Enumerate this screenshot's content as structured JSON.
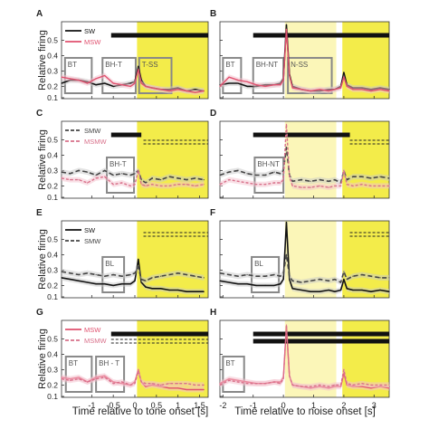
{
  "figure": {
    "ylabel": "Relative firing",
    "xlabel_left": "Time relative to tone onset [s]",
    "xlabel_right": "Time relative to noise onset [s]",
    "left_xticks": [
      -1,
      -0.5,
      0,
      0.5,
      1,
      1.5
    ],
    "left_xlim": [
      -1.7,
      1.7
    ],
    "right_xticks": [
      -2,
      -1,
      0,
      1,
      2,
      3
    ],
    "right_xlim": [
      -2.1,
      3.5
    ],
    "colors": {
      "yellow": "#f3ec4a",
      "light_yellow": "#fbf6b8",
      "sw": "#111111",
      "msw": "#e0506e",
      "smw": "#444444",
      "msmw": "#d8708a",
      "box": "#888888",
      "shade_black": "#c8c8c8",
      "shade_red": "#f3c2cd"
    }
  },
  "chart_data": [
    {
      "type": "line",
      "panel": "A",
      "side": "left",
      "ylim": [
        0.12,
        0.62
      ],
      "yticks": [
        0.1,
        0.2,
        0.3,
        0.4,
        0.5
      ],
      "legend": [
        {
          "label": "SW",
          "style": "solid",
          "color": "#111111"
        },
        {
          "label": "MSW",
          "style": "solid",
          "color": "#e0506e"
        }
      ],
      "epochs": [
        {
          "label": "BT",
          "x": [
            -1.62,
            -1.0
          ]
        },
        {
          "label": "BH-T",
          "x": [
            -0.75,
            0.02
          ]
        },
        {
          "label": "T-SS",
          "x": [
            0.1,
            0.85
          ]
        }
      ],
      "bars": [
        {
          "x": [
            -0.55,
            1.7
          ],
          "style": "solid"
        }
      ],
      "x": [
        -1.7,
        -1.5,
        -1.3,
        -1.1,
        -0.9,
        -0.7,
        -0.5,
        -0.3,
        -0.1,
        0.0,
        0.08,
        0.15,
        0.25,
        0.4,
        0.6,
        0.8,
        1.0,
        1.2,
        1.4,
        1.6
      ],
      "series": [
        {
          "name": "SW",
          "values": [
            0.22,
            0.24,
            0.24,
            0.23,
            0.21,
            0.22,
            0.2,
            0.21,
            0.22,
            0.23,
            0.33,
            0.24,
            0.2,
            0.19,
            0.18,
            0.18,
            0.19,
            0.17,
            0.18,
            0.17
          ]
        },
        {
          "name": "MSW",
          "values": [
            0.26,
            0.25,
            0.24,
            0.22,
            0.25,
            0.27,
            0.22,
            0.21,
            0.2,
            0.22,
            0.31,
            0.22,
            0.2,
            0.19,
            0.18,
            0.17,
            0.18,
            0.17,
            0.16,
            0.17
          ]
        }
      ]
    },
    {
      "type": "line",
      "panel": "B",
      "side": "right",
      "ylim": [
        0.12,
        0.62
      ],
      "yticks": [
        0.1,
        0.2,
        0.3,
        0.4,
        0.5
      ],
      "legend": [],
      "epochs": [
        {
          "label": "BT",
          "x": [
            -2.0,
            -1.4
          ]
        },
        {
          "label": "BH-NT",
          "x": [
            -1.0,
            0.0
          ]
        },
        {
          "label": "N-SS",
          "x": [
            0.15,
            1.6
          ]
        }
      ],
      "bars": [
        {
          "x": [
            -1.0,
            3.5
          ],
          "style": "solid"
        }
      ],
      "x": [
        -2.1,
        -1.8,
        -1.5,
        -1.2,
        -0.9,
        -0.6,
        -0.3,
        -0.1,
        0.0,
        0.1,
        0.2,
        0.3,
        0.6,
        0.9,
        1.2,
        1.5,
        1.7,
        1.9,
        2.0,
        2.1,
        2.3,
        2.6,
        2.9,
        3.2,
        3.5
      ],
      "series": [
        {
          "name": "SW",
          "values": [
            0.21,
            0.22,
            0.22,
            0.2,
            0.2,
            0.21,
            0.21,
            0.22,
            0.25,
            0.6,
            0.28,
            0.2,
            0.18,
            0.17,
            0.17,
            0.18,
            0.18,
            0.2,
            0.29,
            0.21,
            0.19,
            0.19,
            0.18,
            0.19,
            0.18
          ]
        },
        {
          "name": "MSW",
          "values": [
            0.2,
            0.26,
            0.24,
            0.23,
            0.21,
            0.2,
            0.21,
            0.21,
            0.24,
            0.57,
            0.27,
            0.19,
            0.18,
            0.17,
            0.18,
            0.17,
            0.18,
            0.19,
            0.26,
            0.2,
            0.18,
            0.18,
            0.17,
            0.18,
            0.17
          ]
        }
      ]
    },
    {
      "type": "line",
      "panel": "C",
      "side": "left",
      "ylim": [
        0.12,
        0.62
      ],
      "yticks": [
        0.1,
        0.2,
        0.3,
        0.4,
        0.5
      ],
      "legend": [
        {
          "label": "SMW",
          "style": "dash",
          "color": "#444444"
        },
        {
          "label": "MSMW",
          "style": "dash",
          "color": "#d8708a"
        }
      ],
      "epochs": [
        {
          "label": "BH-T",
          "x": [
            -0.65,
            -0.02
          ]
        }
      ],
      "bars": [
        {
          "x": [
            -0.55,
            0.15
          ],
          "style": "solid"
        },
        {
          "x": [
            0.2,
            1.7
          ],
          "style": "dash"
        }
      ],
      "x": [
        -1.7,
        -1.5,
        -1.3,
        -1.1,
        -0.9,
        -0.7,
        -0.5,
        -0.3,
        -0.1,
        0.0,
        0.08,
        0.15,
        0.25,
        0.4,
        0.6,
        0.8,
        1.0,
        1.2,
        1.4,
        1.6
      ],
      "series": [
        {
          "name": "SMW",
          "values": [
            0.29,
            0.28,
            0.3,
            0.29,
            0.27,
            0.3,
            0.27,
            0.28,
            0.27,
            0.28,
            0.3,
            0.24,
            0.22,
            0.25,
            0.24,
            0.26,
            0.25,
            0.24,
            0.25,
            0.24
          ]
        },
        {
          "name": "MSMW",
          "values": [
            0.25,
            0.24,
            0.24,
            0.22,
            0.25,
            0.26,
            0.21,
            0.22,
            0.2,
            0.21,
            0.3,
            0.21,
            0.2,
            0.21,
            0.2,
            0.2,
            0.21,
            0.21,
            0.2,
            0.21
          ]
        }
      ]
    },
    {
      "type": "line",
      "panel": "D",
      "side": "right",
      "ylim": [
        0.12,
        0.62
      ],
      "yticks": [
        0.1,
        0.2,
        0.3,
        0.4,
        0.5
      ],
      "legend": [],
      "epochs": [
        {
          "label": "BH-NT",
          "x": [
            -0.95,
            0.0
          ]
        }
      ],
      "bars": [
        {
          "x": [
            -1.0,
            2.2
          ],
          "style": "solid"
        },
        {
          "x": [
            2.2,
            3.5
          ],
          "style": "dash"
        }
      ],
      "x": [
        -2.1,
        -1.8,
        -1.5,
        -1.2,
        -0.9,
        -0.6,
        -0.3,
        -0.1,
        0.0,
        0.1,
        0.2,
        0.3,
        0.6,
        0.9,
        1.2,
        1.5,
        1.7,
        1.9,
        2.0,
        2.1,
        2.3,
        2.6,
        2.9,
        3.2,
        3.5
      ],
      "series": [
        {
          "name": "SMW",
          "values": [
            0.27,
            0.29,
            0.3,
            0.28,
            0.27,
            0.27,
            0.29,
            0.28,
            0.3,
            0.45,
            0.27,
            0.23,
            0.24,
            0.23,
            0.24,
            0.23,
            0.24,
            0.22,
            0.3,
            0.24,
            0.26,
            0.26,
            0.25,
            0.26,
            0.25
          ]
        },
        {
          "name": "MSMW",
          "values": [
            0.21,
            0.24,
            0.23,
            0.22,
            0.21,
            0.21,
            0.22,
            0.22,
            0.24,
            0.6,
            0.26,
            0.2,
            0.19,
            0.19,
            0.2,
            0.19,
            0.2,
            0.2,
            0.3,
            0.21,
            0.2,
            0.21,
            0.2,
            0.2,
            0.2
          ]
        }
      ]
    },
    {
      "type": "line",
      "panel": "E",
      "side": "left",
      "ylim": [
        0.12,
        0.62
      ],
      "yticks": [
        0.1,
        0.2,
        0.3,
        0.4,
        0.5
      ],
      "legend": [
        {
          "label": "SW",
          "style": "solid",
          "color": "#111111"
        },
        {
          "label": "SMW",
          "style": "dash",
          "color": "#444444"
        }
      ],
      "epochs": [
        {
          "label": "BL",
          "x": [
            -0.75,
            -0.25
          ]
        }
      ],
      "bars": [
        {
          "x": [
            0.2,
            1.7
          ],
          "style": "dash"
        }
      ],
      "x": [
        -1.7,
        -1.5,
        -1.3,
        -1.1,
        -0.9,
        -0.7,
        -0.5,
        -0.3,
        -0.1,
        0.0,
        0.08,
        0.15,
        0.25,
        0.4,
        0.6,
        0.8,
        1.0,
        1.2,
        1.4,
        1.6
      ],
      "series": [
        {
          "name": "SW",
          "values": [
            0.25,
            0.24,
            0.23,
            0.22,
            0.21,
            0.21,
            0.2,
            0.21,
            0.21,
            0.23,
            0.37,
            0.22,
            0.19,
            0.18,
            0.18,
            0.17,
            0.17,
            0.16,
            0.16,
            0.16
          ]
        },
        {
          "name": "SMW",
          "values": [
            0.29,
            0.28,
            0.27,
            0.28,
            0.27,
            0.26,
            0.27,
            0.26,
            0.27,
            0.28,
            0.32,
            0.24,
            0.23,
            0.25,
            0.26,
            0.27,
            0.28,
            0.27,
            0.26,
            0.25
          ]
        }
      ]
    },
    {
      "type": "line",
      "panel": "F",
      "side": "right",
      "ylim": [
        0.12,
        0.62
      ],
      "yticks": [
        0.1,
        0.2,
        0.3,
        0.4,
        0.5
      ],
      "legend": [],
      "epochs": [
        {
          "label": "BL",
          "x": [
            -1.05,
            -0.15
          ]
        }
      ],
      "bars": [
        {
          "x": [
            2.2,
            3.5
          ],
          "style": "dash"
        }
      ],
      "x": [
        -2.1,
        -1.8,
        -1.5,
        -1.2,
        -0.9,
        -0.6,
        -0.3,
        -0.1,
        0.0,
        0.1,
        0.2,
        0.3,
        0.6,
        0.9,
        1.2,
        1.5,
        1.7,
        1.9,
        2.0,
        2.1,
        2.3,
        2.6,
        2.9,
        3.2,
        3.5
      ],
      "series": [
        {
          "name": "SW",
          "values": [
            0.23,
            0.22,
            0.21,
            0.21,
            0.2,
            0.2,
            0.2,
            0.21,
            0.24,
            0.61,
            0.24,
            0.18,
            0.17,
            0.16,
            0.16,
            0.17,
            0.16,
            0.17,
            0.24,
            0.18,
            0.17,
            0.17,
            0.16,
            0.17,
            0.16
          ]
        },
        {
          "name": "SMW",
          "values": [
            0.28,
            0.27,
            0.26,
            0.27,
            0.26,
            0.26,
            0.27,
            0.26,
            0.28,
            0.4,
            0.26,
            0.23,
            0.22,
            0.23,
            0.24,
            0.23,
            0.24,
            0.22,
            0.29,
            0.24,
            0.26,
            0.27,
            0.26,
            0.25,
            0.25
          ]
        }
      ]
    },
    {
      "type": "line",
      "panel": "G",
      "side": "left",
      "ylim": [
        0.12,
        0.62
      ],
      "yticks": [
        0.1,
        0.2,
        0.3,
        0.4,
        0.5
      ],
      "legend": [
        {
          "label": "MSW",
          "style": "solid",
          "color": "#e0506e"
        },
        {
          "label": "MSMW",
          "style": "dash",
          "color": "#d8708a"
        }
      ],
      "epochs": [
        {
          "label": "BT",
          "x": [
            -1.6,
            -1.0
          ]
        },
        {
          "label": "BH - T",
          "x": [
            -0.9,
            -0.25
          ]
        }
      ],
      "bars": [
        {
          "x": [
            -0.55,
            1.7
          ],
          "style": "solid"
        },
        {
          "x": [
            -0.55,
            1.7
          ],
          "style": "dash"
        }
      ],
      "x": [
        -1.7,
        -1.5,
        -1.3,
        -1.1,
        -0.9,
        -0.7,
        -0.5,
        -0.3,
        -0.1,
        0.0,
        0.08,
        0.15,
        0.25,
        0.4,
        0.6,
        0.8,
        1.0,
        1.2,
        1.4,
        1.6
      ],
      "series": [
        {
          "name": "MSW",
          "values": [
            0.25,
            0.24,
            0.25,
            0.22,
            0.25,
            0.26,
            0.22,
            0.21,
            0.2,
            0.22,
            0.3,
            0.22,
            0.19,
            0.2,
            0.19,
            0.18,
            0.18,
            0.17,
            0.17,
            0.17
          ]
        },
        {
          "name": "MSMW",
          "values": [
            0.24,
            0.23,
            0.24,
            0.22,
            0.24,
            0.25,
            0.21,
            0.22,
            0.2,
            0.21,
            0.29,
            0.22,
            0.21,
            0.21,
            0.2,
            0.21,
            0.21,
            0.21,
            0.2,
            0.2
          ]
        }
      ]
    },
    {
      "type": "line",
      "panel": "H",
      "side": "right",
      "ylim": [
        0.12,
        0.62
      ],
      "yticks": [
        0.1,
        0.2,
        0.3,
        0.4,
        0.5
      ],
      "legend": [],
      "epochs": [
        {
          "label": "BT",
          "x": [
            -2.0,
            -1.3
          ]
        }
      ],
      "bars": [
        {
          "x": [
            -1.0,
            3.5
          ],
          "style": "solid"
        },
        {
          "x": [
            -1.0,
            3.5
          ],
          "style": "solid"
        }
      ],
      "x": [
        -2.1,
        -1.8,
        -1.5,
        -1.2,
        -0.9,
        -0.6,
        -0.3,
        -0.1,
        0.0,
        0.1,
        0.2,
        0.3,
        0.6,
        0.9,
        1.2,
        1.5,
        1.7,
        1.9,
        2.0,
        2.1,
        2.3,
        2.6,
        2.9,
        3.2,
        3.5
      ],
      "series": [
        {
          "name": "MSW",
          "values": [
            0.21,
            0.24,
            0.23,
            0.22,
            0.21,
            0.21,
            0.22,
            0.22,
            0.25,
            0.58,
            0.26,
            0.2,
            0.19,
            0.18,
            0.19,
            0.18,
            0.19,
            0.19,
            0.28,
            0.2,
            0.19,
            0.19,
            0.18,
            0.19,
            0.18
          ]
        },
        {
          "name": "MSMW",
          "values": [
            0.2,
            0.23,
            0.22,
            0.21,
            0.21,
            0.21,
            0.22,
            0.21,
            0.24,
            0.59,
            0.26,
            0.2,
            0.19,
            0.19,
            0.2,
            0.19,
            0.2,
            0.2,
            0.3,
            0.21,
            0.2,
            0.21,
            0.2,
            0.2,
            0.2
          ]
        }
      ]
    }
  ]
}
